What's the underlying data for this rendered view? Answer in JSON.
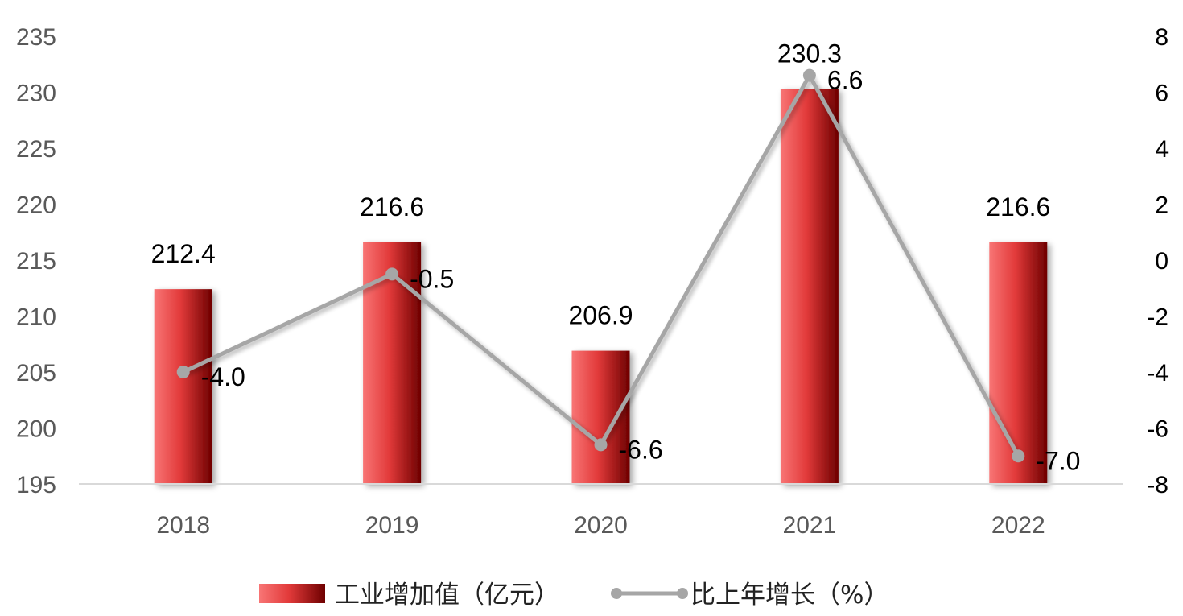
{
  "chart_data": {
    "type": "bar",
    "categories": [
      "2018",
      "2019",
      "2020",
      "2021",
      "2022"
    ],
    "series": [
      {
        "name": "工业增加值（亿元）",
        "type": "bar",
        "axis": "left",
        "values": [
          212.4,
          216.6,
          206.9,
          230.3,
          216.6
        ],
        "labels": [
          "212.4",
          "216.6",
          "206.9",
          "230.3",
          "216.6"
        ]
      },
      {
        "name": "比上年增长（%）",
        "type": "line",
        "axis": "right",
        "values": [
          -4.0,
          -0.5,
          -6.6,
          6.6,
          -7.0
        ],
        "labels": [
          "-4.0",
          "-0.5",
          "-6.6",
          "6.6",
          "-7.0"
        ]
      }
    ],
    "y_left": {
      "lim": [
        195,
        235
      ],
      "ticks": [
        "195",
        "200",
        "205",
        "210",
        "215",
        "220",
        "225",
        "230",
        "235"
      ]
    },
    "y_right": {
      "lim": [
        -8,
        8
      ],
      "ticks": [
        "-8",
        "-6",
        "-4",
        "-2",
        "0",
        "2",
        "4",
        "6",
        "8"
      ]
    },
    "grid": false,
    "legend": "bottom",
    "colors": {
      "bar_light": "#f87575",
      "bar_mid": "#e23a3a",
      "bar_dark": "#6e0000",
      "line": "#a6a6a6",
      "axis_line": "#d9d9d9"
    }
  }
}
